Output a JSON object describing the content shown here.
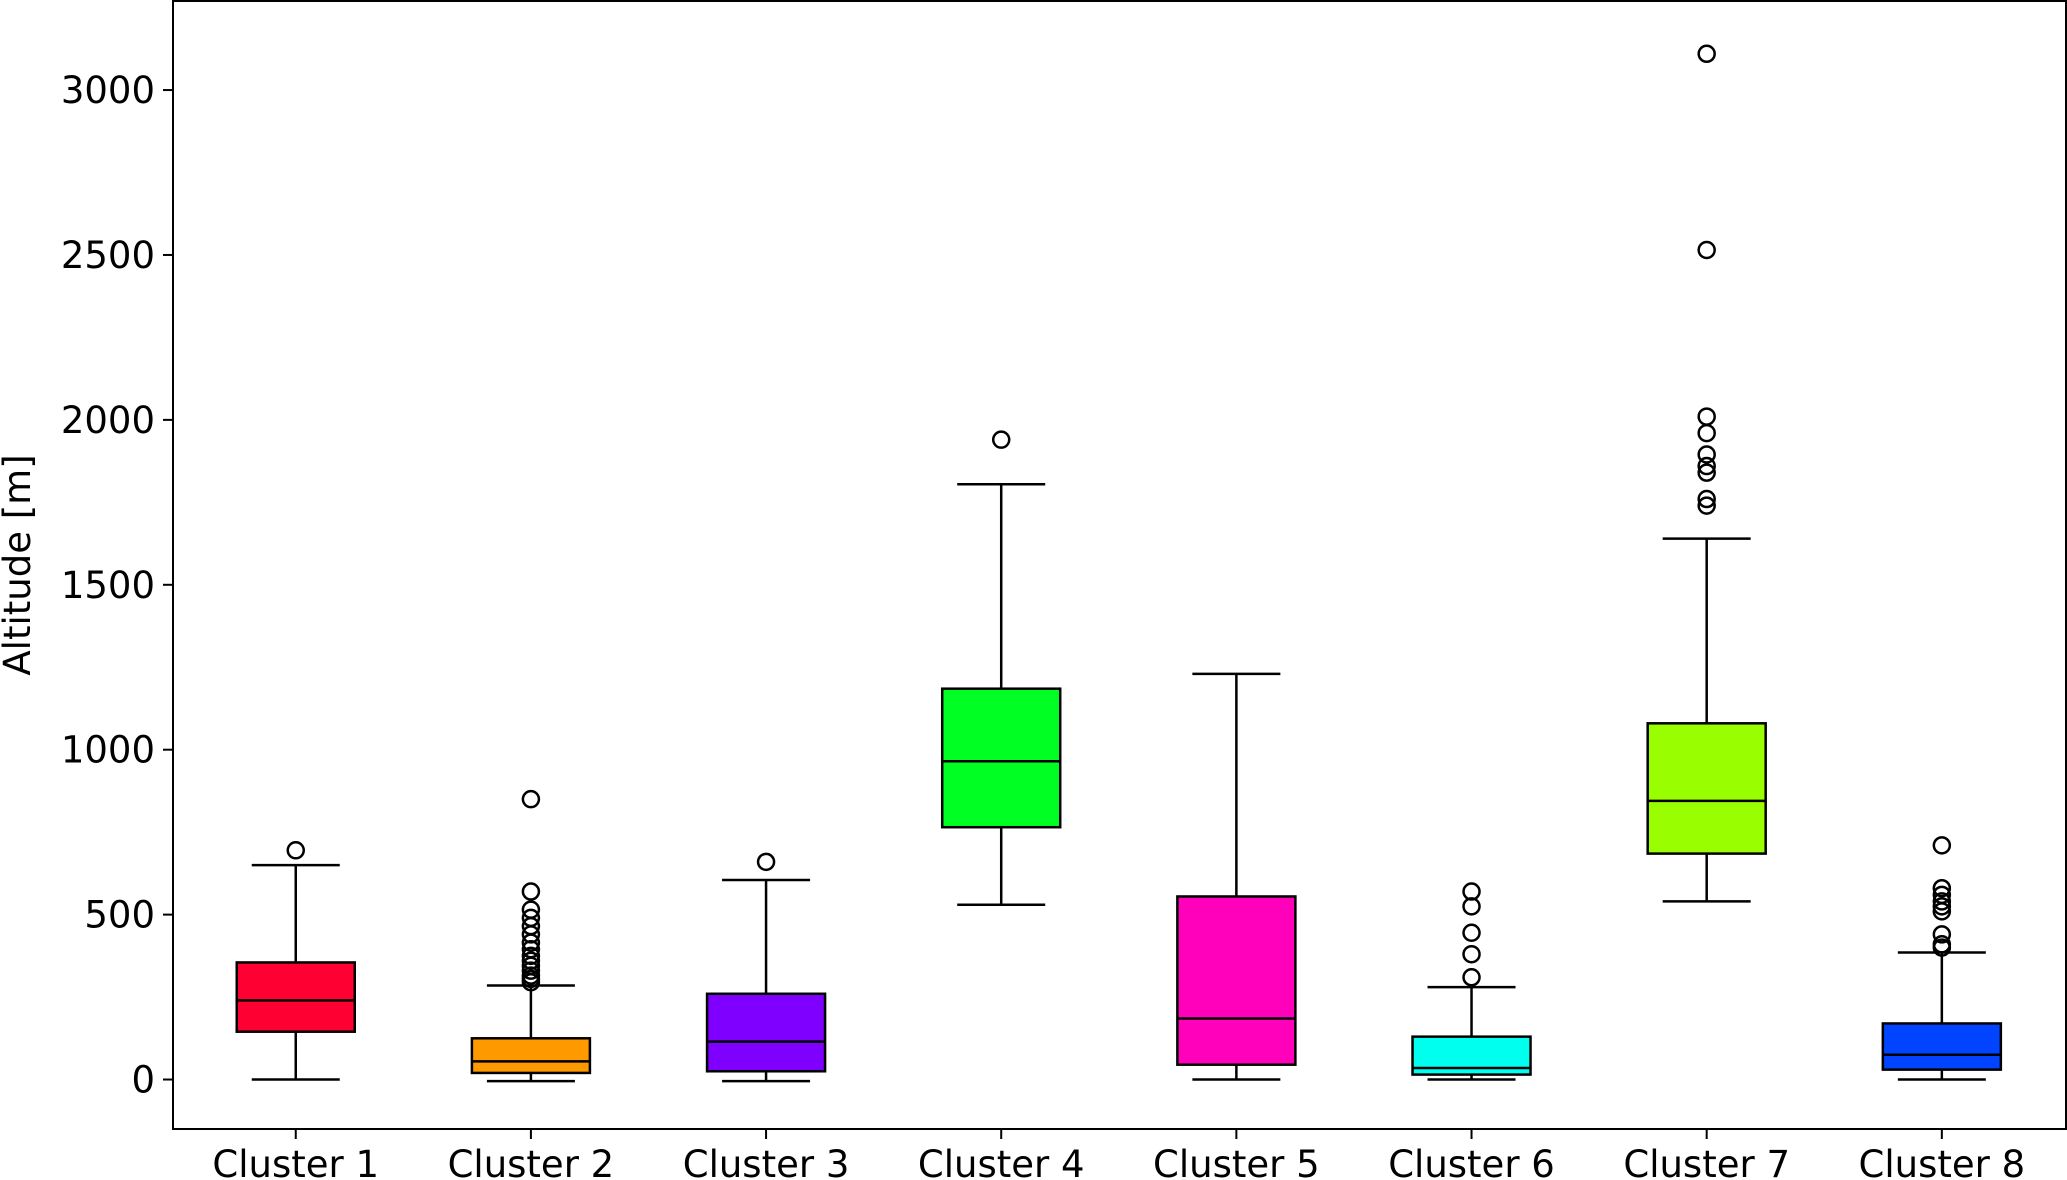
{
  "chart_data": {
    "type": "box",
    "title": "",
    "xlabel": "",
    "ylabel": "Altitude [m]",
    "ylim": [
      -150,
      3270
    ],
    "yticks": [
      0,
      500,
      1000,
      1500,
      2000,
      2500,
      3000
    ],
    "grid": false,
    "categories": [
      "Cluster 1",
      "Cluster 2",
      "Cluster 3",
      "Cluster 4",
      "Cluster 5",
      "Cluster 6",
      "Cluster 7",
      "Cluster 8"
    ],
    "boxes": [
      {
        "category": "Cluster 1",
        "color": "#ff0033",
        "whisker_low": 0,
        "q1": 145,
        "median": 240,
        "q3": 355,
        "whisker_high": 650,
        "outliers": [
          695
        ]
      },
      {
        "category": "Cluster 2",
        "color": "#ff9900",
        "whisker_low": -5,
        "q1": 20,
        "median": 55,
        "q3": 125,
        "whisker_high": 285,
        "outliers": [
          295,
          305,
          315,
          330,
          345,
          360,
          375,
          395,
          415,
          440,
          465,
          490,
          515,
          570,
          850
        ]
      },
      {
        "category": "Cluster 3",
        "color": "#7f00ff",
        "whisker_low": -5,
        "q1": 25,
        "median": 115,
        "q3": 260,
        "whisker_high": 605,
        "outliers": [
          660
        ]
      },
      {
        "category": "Cluster 4",
        "color": "#00ff22",
        "whisker_low": 530,
        "q1": 765,
        "median": 965,
        "q3": 1185,
        "whisker_high": 1805,
        "outliers": [
          1940
        ]
      },
      {
        "category": "Cluster 5",
        "color": "#ff00bb",
        "whisker_low": 0,
        "q1": 45,
        "median": 185,
        "q3": 555,
        "whisker_high": 1230,
        "outliers": []
      },
      {
        "category": "Cluster 6",
        "color": "#00ffee",
        "whisker_low": 0,
        "q1": 15,
        "median": 35,
        "q3": 130,
        "whisker_high": 280,
        "outliers": [
          310,
          380,
          445,
          525,
          570
        ]
      },
      {
        "category": "Cluster 7",
        "color": "#99ff00",
        "whisker_low": 540,
        "q1": 685,
        "median": 845,
        "q3": 1080,
        "whisker_high": 1640,
        "outliers": [
          1740,
          1760,
          1840,
          1860,
          1895,
          1960,
          2010,
          2515,
          3110
        ]
      },
      {
        "category": "Cluster 8",
        "color": "#0044ff",
        "whisker_low": 0,
        "q1": 30,
        "median": 75,
        "q3": 170,
        "whisker_high": 385,
        "outliers": [
          400,
          410,
          440,
          510,
          525,
          540,
          560,
          580,
          710
        ]
      }
    ]
  }
}
